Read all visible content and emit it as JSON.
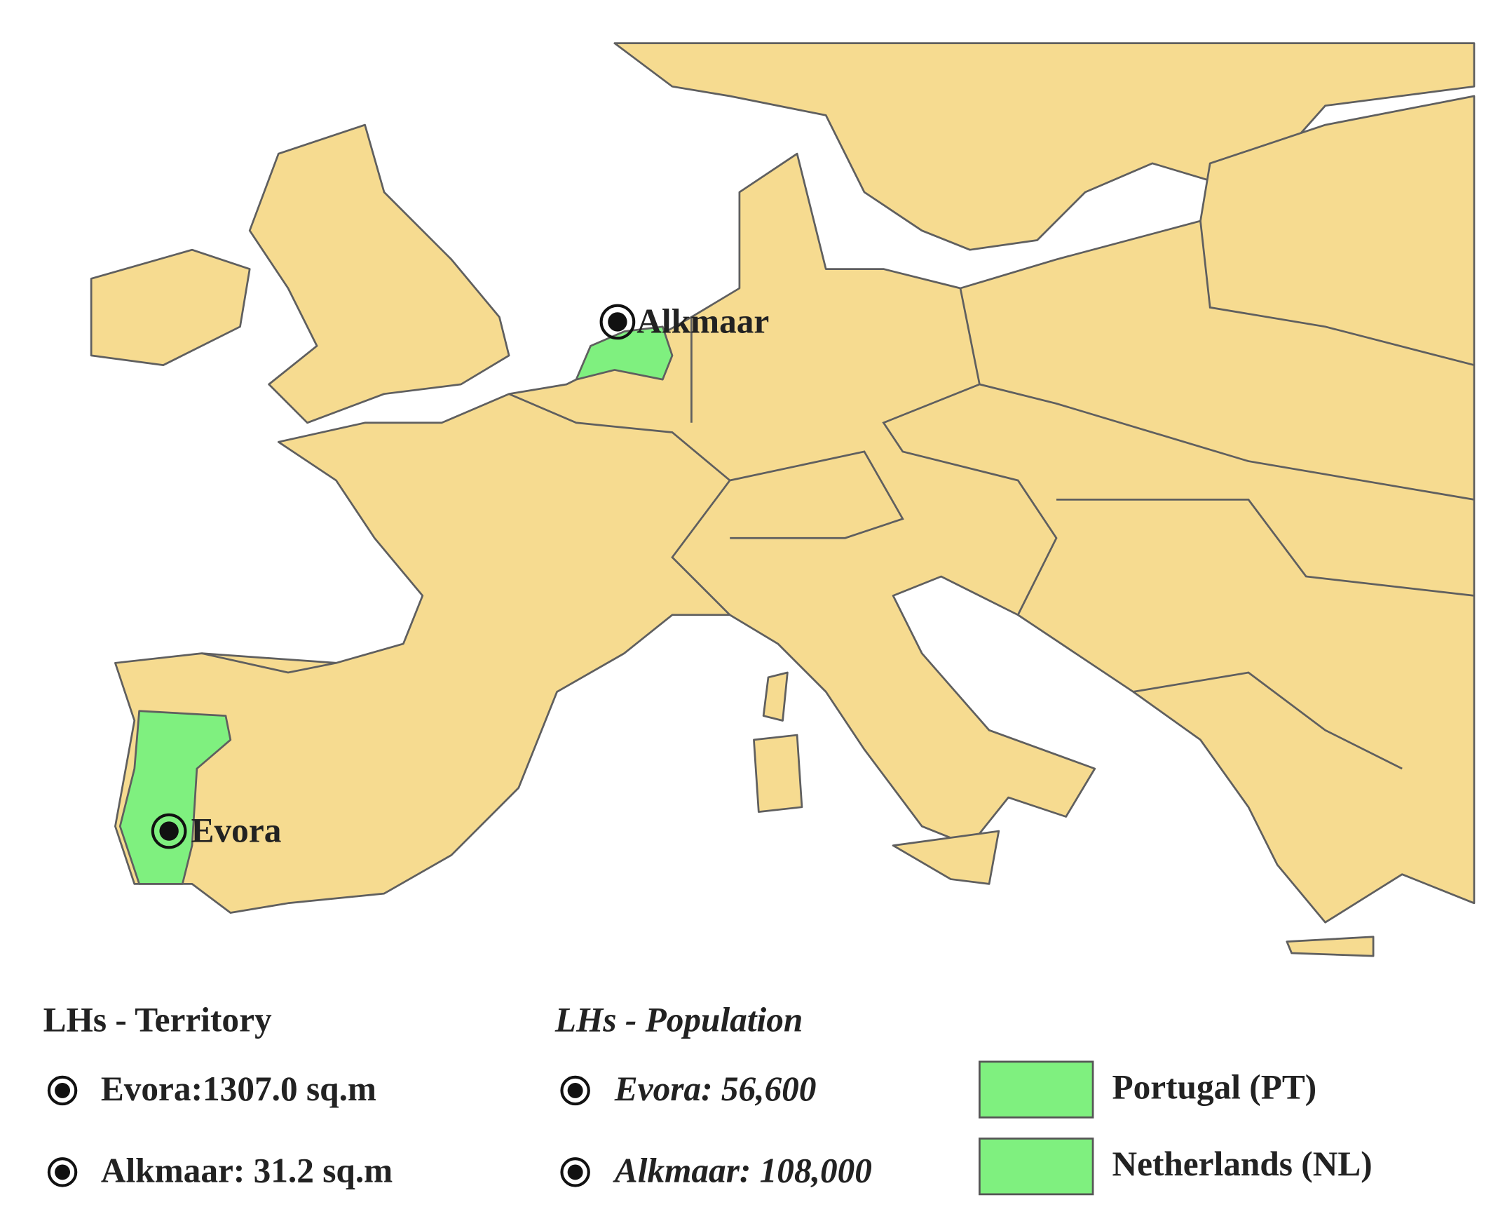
{
  "map": {
    "labels": [
      "Alkmaar",
      "Evora"
    ]
  },
  "legend": {
    "territory": {
      "title": "LHs - Territory",
      "items": [
        "Evora:1307.0 sq.m",
        "Alkmaar: 31.2 sq.m"
      ]
    },
    "population": {
      "title": "LHs - Population",
      "items": [
        "Evora: 56,600",
        "Alkmaar: 108,000"
      ]
    },
    "countries": [
      {
        "name": "Portugal (PT)",
        "color": "#7ff07f"
      },
      {
        "name": "Netherlands (NL)",
        "color": "#7ff07f"
      }
    ]
  }
}
